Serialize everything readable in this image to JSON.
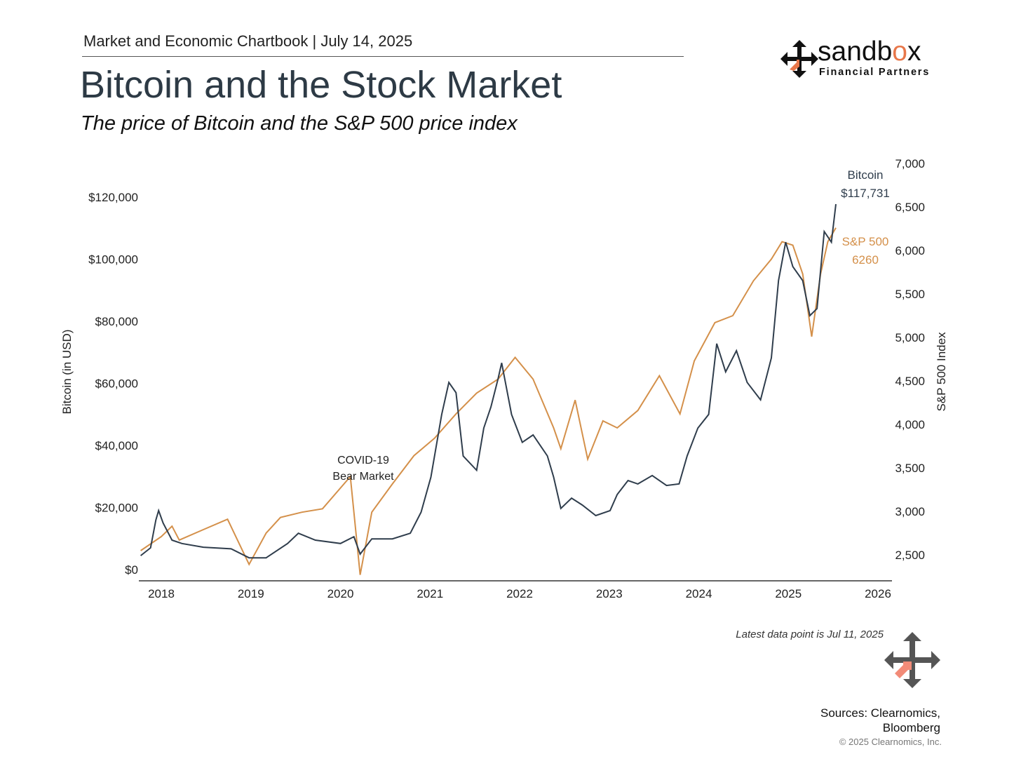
{
  "header": {
    "kicker": "Market and Economic Chartbook | July 14, 2025",
    "title": "Bitcoin and the Stock Market",
    "subtitle": "The price of Bitcoin and the S&P 500 price index"
  },
  "logo": {
    "word_main": "sandb",
    "word_accent": "o",
    "word_end": "x",
    "tagline": "Financial Partners"
  },
  "footer": {
    "latest": "Latest data point is Jul 11, 2025",
    "sources_line1": "Sources: Clearnomics,",
    "sources_line2": "Bloomberg",
    "copyright": "© 2025 Clearnomics, Inc."
  },
  "colors": {
    "bitcoin": "#2f3d4c",
    "sp500": "#d4904a",
    "accent": "#e8774a",
    "mark": "#555555",
    "mark_accent": "#f28b78"
  },
  "chart_data": {
    "type": "line",
    "title": "Bitcoin and the Stock Market",
    "ylabel": "Bitcoin (in USD)",
    "y2label": "S&P 500 Index",
    "xlim": [
      2017.75,
      2026
    ],
    "ylim": [
      0,
      130000
    ],
    "y2lim": [
      2200,
      7000
    ],
    "x_ticks": [
      "2018",
      "2019",
      "2020",
      "2021",
      "2022",
      "2023",
      "2024",
      "2025",
      "2026"
    ],
    "y_ticks": [
      "$0",
      "$20,000",
      "$40,000",
      "$60,000",
      "$80,000",
      "$100,000",
      "$120,000"
    ],
    "y_tick_values": [
      0,
      20000,
      40000,
      60000,
      80000,
      100000,
      120000
    ],
    "y2_ticks": [
      "2,500",
      "3,000",
      "3,500",
      "4,000",
      "4,500",
      "5,000",
      "5,500",
      "6,000",
      "6,500",
      "7,000"
    ],
    "y2_tick_values": [
      2500,
      3000,
      3500,
      4000,
      4500,
      5000,
      5500,
      6000,
      6500,
      7000
    ],
    "annotations": {
      "covid_line1": "COVID-19",
      "covid_line2": "Bear Market",
      "btc_label": "Bitcoin",
      "btc_value": "$117,731",
      "sp_label": "S&P 500",
      "sp_value": "6260"
    },
    "series": [
      {
        "name": "Bitcoin",
        "axis": "left",
        "x": [
          2017.77,
          2017.88,
          2017.94,
          2017.97,
          2018.02,
          2018.12,
          2018.23,
          2018.47,
          2018.78,
          2018.98,
          2019.17,
          2019.41,
          2019.53,
          2019.72,
          2020.0,
          2020.15,
          2020.22,
          2020.35,
          2020.58,
          2020.78,
          2020.9,
          2021.01,
          2021.13,
          2021.21,
          2021.29,
          2021.37,
          2021.52,
          2021.6,
          2021.68,
          2021.76,
          2021.8,
          2021.91,
          2022.03,
          2022.15,
          2022.31,
          2022.38,
          2022.46,
          2022.58,
          2022.7,
          2022.85,
          2023.01,
          2023.09,
          2023.21,
          2023.32,
          2023.48,
          2023.64,
          2023.78,
          2023.87,
          2023.99,
          2024.11,
          2024.2,
          2024.3,
          2024.42,
          2024.54,
          2024.69,
          2024.81,
          2024.89,
          2024.97,
          2025.05,
          2025.16,
          2025.24,
          2025.32,
          2025.4,
          2025.48,
          2025.53
        ],
        "values": [
          4500,
          7000,
          16000,
          19000,
          15000,
          9500,
          8400,
          7200,
          6700,
          3800,
          3800,
          8400,
          11700,
          9500,
          8400,
          10600,
          5000,
          9900,
          9900,
          11700,
          18500,
          29800,
          50000,
          60300,
          57000,
          36600,
          32000,
          45600,
          52400,
          61500,
          66600,
          50000,
          41000,
          43400,
          36600,
          29800,
          19700,
          23000,
          20800,
          17400,
          19000,
          24200,
          28700,
          27600,
          30300,
          27100,
          27600,
          36600,
          45600,
          50000,
          72800,
          63700,
          70500,
          60300,
          54700,
          68200,
          93100,
          105500,
          97600,
          93100,
          81800,
          84100,
          108900,
          105500,
          117731
        ]
      },
      {
        "name": "S&P 500",
        "axis": "right",
        "x": [
          2017.77,
          2018.0,
          2018.12,
          2018.2,
          2018.47,
          2018.74,
          2018.98,
          2019.17,
          2019.33,
          2019.57,
          2019.8,
          2020.11,
          2020.22,
          2020.35,
          2020.58,
          2020.82,
          2021.05,
          2021.29,
          2021.52,
          2021.76,
          2021.95,
          2022.15,
          2022.38,
          2022.46,
          2022.62,
          2022.76,
          2022.93,
          2023.09,
          2023.32,
          2023.56,
          2023.79,
          2023.95,
          2024.18,
          2024.38,
          2024.61,
          2024.81,
          2024.93,
          2025.05,
          2025.16,
          2025.26,
          2025.36,
          2025.44,
          2025.53
        ],
        "values": [
          2548,
          2710,
          2830,
          2670,
          2790,
          2910,
          2390,
          2750,
          2930,
          2990,
          3030,
          3400,
          2270,
          2990,
          3315,
          3640,
          3840,
          4120,
          4360,
          4520,
          4770,
          4520,
          3960,
          3720,
          4280,
          3600,
          4040,
          3960,
          4160,
          4560,
          4120,
          4730,
          5170,
          5250,
          5650,
          5900,
          6100,
          6060,
          5730,
          5010,
          5730,
          6100,
          6260
        ]
      }
    ]
  }
}
